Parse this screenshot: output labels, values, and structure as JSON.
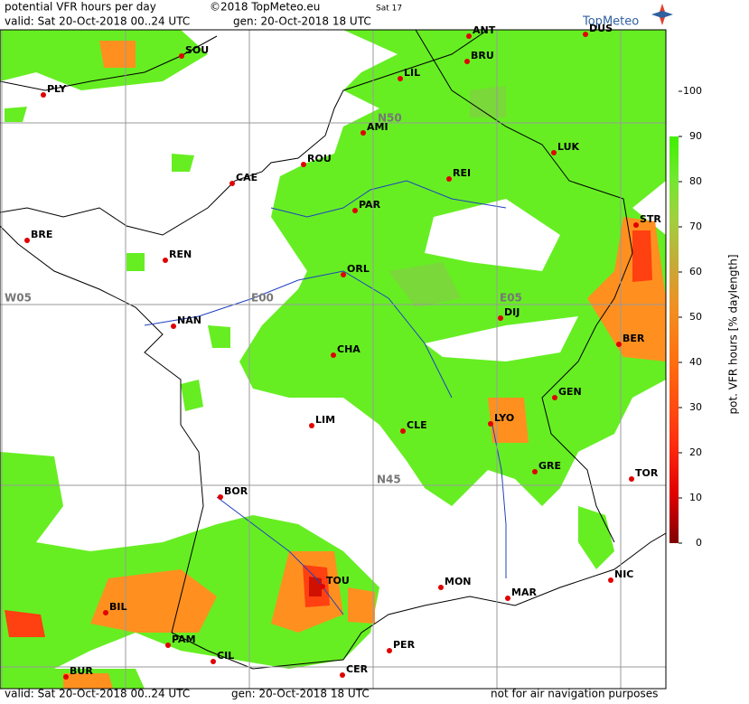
{
  "header": {
    "title": "potential VFR hours per day",
    "copyright": "©2018 TopMeteo.eu",
    "run": "Sat 17",
    "valid": "valid:  Sat  20-Oct-2018  00..24 UTC",
    "gen": "gen:  20-Oct-2018 18 UTC",
    "logo": "TopMeteo"
  },
  "grid_labels": [
    "W05",
    "E00",
    "E05",
    "N50",
    "N45"
  ],
  "cities": [
    "SOU",
    "PLY",
    "ANT",
    "BRU",
    "DUS",
    "LIL",
    "AMI",
    "ROU",
    "CAE",
    "REI",
    "LUK",
    "PAR",
    "STR",
    "BRE",
    "REN",
    "ORL",
    "DIJ",
    "NAN",
    "BER",
    "CHA",
    "GEN",
    "LIM",
    "LYO",
    "CLE",
    "GRE",
    "TOR",
    "BOR",
    "MON",
    "TOU",
    "MAR",
    "NIC",
    "BIL",
    "PAM",
    "PER",
    "CIL",
    "CER",
    "BUR"
  ],
  "colorbar": {
    "label": "pot. VFR hours [% daylength]",
    "ylim": [
      0,
      100
    ],
    "bar_range": [
      0,
      90
    ],
    "ticks": [
      0,
      10,
      20,
      30,
      40,
      50,
      60,
      70,
      80,
      90,
      100
    ]
  },
  "footer": {
    "valid": "valid:  Sat  20-Oct-2018  00..24 UTC",
    "gen": "gen:  20-Oct-2018 18 UTC",
    "note": "not for air navigation purposes"
  }
}
